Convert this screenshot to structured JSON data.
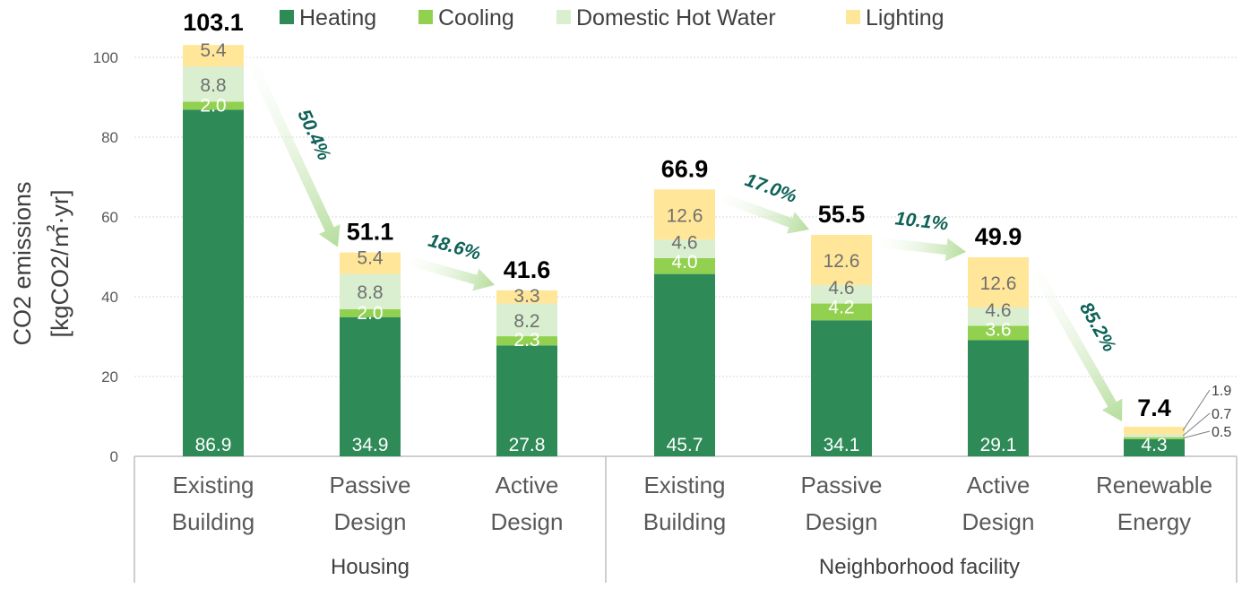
{
  "chart_data": {
    "type": "bar",
    "stacked": true,
    "ylabel_line1": "CO2 emissions",
    "ylabel_line2": "[kgCO2/㎡·yr]",
    "ylim": [
      0,
      100
    ],
    "yticks": [
      "0",
      "20",
      "40",
      "60",
      "80",
      "100"
    ],
    "legend_position": "top-center",
    "gridlines": true,
    "categories": [
      {
        "line1": "Existing",
        "line2": "Building"
      },
      {
        "line1": "Passive",
        "line2": "Design"
      },
      {
        "line1": "Active",
        "line2": "Design"
      },
      {
        "line1": "Existing",
        "line2": "Building"
      },
      {
        "line1": "Passive",
        "line2": "Design"
      },
      {
        "line1": "Active",
        "line2": "Design"
      },
      {
        "line1": "Renewable",
        "line2": "Energy"
      }
    ],
    "groups": [
      {
        "name": "Housing",
        "span": [
          0,
          2
        ]
      },
      {
        "name": "Neighborhood facility",
        "span": [
          3,
          6
        ]
      }
    ],
    "series": [
      {
        "name": "Heating",
        "color": "#2e8b57",
        "values": [
          86.9,
          34.9,
          27.8,
          45.7,
          34.1,
          29.1,
          4.3
        ],
        "labels": [
          "86.9",
          "34.9",
          "27.8",
          "45.7",
          "34.1",
          "29.1",
          "4.3"
        ]
      },
      {
        "name": "Cooling",
        "color": "#92d050",
        "values": [
          2.0,
          2.0,
          2.3,
          4.0,
          4.2,
          3.6,
          0.5
        ],
        "labels": [
          "2.0",
          "2.0",
          "2.3",
          "4.0",
          "4.2",
          "3.6",
          "0.5"
        ]
      },
      {
        "name": "Domestic Hot Water",
        "color": "#d9efd0",
        "values": [
          8.8,
          8.8,
          8.2,
          4.6,
          4.6,
          4.6,
          0.7
        ],
        "labels": [
          "8.8",
          "8.8",
          "8.2",
          "4.6",
          "4.6",
          "4.6",
          "0.7"
        ]
      },
      {
        "name": "Lighting",
        "color": "#ffe699",
        "values": [
          5.4,
          5.4,
          3.3,
          12.6,
          12.6,
          12.6,
          1.9
        ],
        "labels": [
          "5.4",
          "5.4",
          "3.3",
          "12.6",
          "12.6",
          "12.6",
          "1.9"
        ]
      }
    ],
    "totals": [
      "103.1",
      "51.1",
      "41.6",
      "66.9",
      "55.5",
      "49.9",
      "7.4"
    ],
    "reductions": [
      {
        "from": 0,
        "to": 1,
        "label": "50.4%"
      },
      {
        "from": 1,
        "to": 2,
        "label": "18.6%"
      },
      {
        "from": 3,
        "to": 4,
        "label": "17.0%"
      },
      {
        "from": 4,
        "to": 5,
        "label": "10.1%"
      },
      {
        "from": 5,
        "to": 6,
        "label": "85.2%"
      }
    ]
  }
}
